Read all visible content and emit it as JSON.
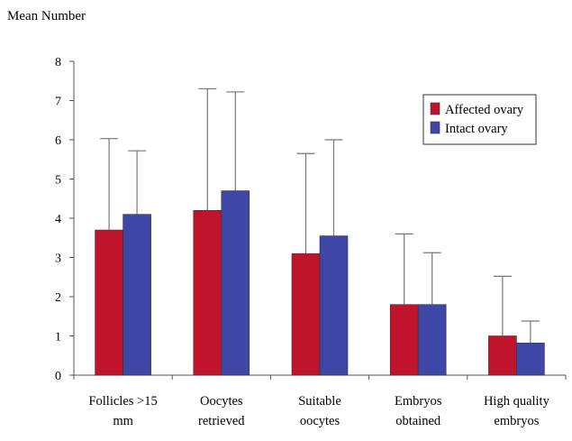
{
  "chart_data": {
    "type": "bar",
    "ylabel": "Mean Number",
    "ylim": [
      0,
      8
    ],
    "yticks": [
      0,
      1,
      2,
      3,
      4,
      5,
      6,
      7,
      8
    ],
    "categories": [
      [
        "Follicles >15",
        "mm"
      ],
      [
        "Oocytes",
        "retrieved"
      ],
      [
        "Suitable",
        "oocytes"
      ],
      [
        "Embryos",
        "obtained"
      ],
      [
        "High quality",
        "embryos"
      ]
    ],
    "series": [
      {
        "name": "Affected ovary",
        "color": "#c0142c",
        "values": [
          3.7,
          4.2,
          3.1,
          1.8,
          1.0
        ],
        "error_upper": [
          6.03,
          7.3,
          5.65,
          3.6,
          2.52
        ]
      },
      {
        "name": "Intact ovary",
        "color": "#3f47a6",
        "values": [
          4.1,
          4.7,
          3.55,
          1.8,
          0.82
        ],
        "error_upper": [
          5.72,
          7.22,
          6.0,
          3.12,
          1.38
        ]
      }
    ],
    "legend_position": "top-right",
    "grid": false
  }
}
